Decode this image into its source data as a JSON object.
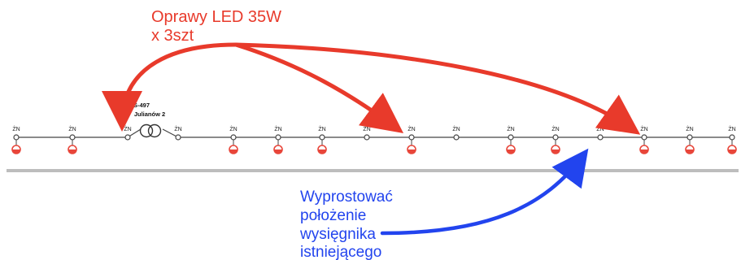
{
  "colors": {
    "line": "#444444",
    "road": "#bdbdbd",
    "lamp": "#e8463a",
    "red_note": "#e83a2b",
    "blue_note": "#2244ee"
  },
  "red_annotation": {
    "line1": "Oprawy LED 35W",
    "line2": "x 3szt"
  },
  "blue_annotation": {
    "lines": [
      "Wyprostować",
      "położenie",
      "wysięgnika",
      "istniejącego"
    ]
  },
  "station": {
    "id": "S-497",
    "name": "Julianów 2",
    "icon": "transformer-icon"
  },
  "pole_label": "ŻN",
  "poles": [
    {
      "label": "ŻN",
      "lamp": true
    },
    {
      "label": "ŻN",
      "lamp": true
    },
    {
      "label": "ŻN",
      "lamp": false
    },
    {
      "label": "ŻN",
      "lamp": false
    },
    {
      "label": "ŻN",
      "lamp": true
    },
    {
      "label": "ŻN",
      "lamp": true
    },
    {
      "label": "ŻN",
      "lamp": true
    },
    {
      "label": "ŻN",
      "lamp": false
    },
    {
      "label": "ŻN",
      "lamp": true
    },
    {
      "label": "ŻN",
      "lamp": false
    },
    {
      "label": "ŻN",
      "lamp": true
    },
    {
      "label": "ŻN",
      "lamp": true
    },
    {
      "label": "ŻN",
      "lamp": false
    },
    {
      "label": "ŻN",
      "lamp": true
    },
    {
      "label": "ŻN",
      "lamp": true
    }
  ]
}
